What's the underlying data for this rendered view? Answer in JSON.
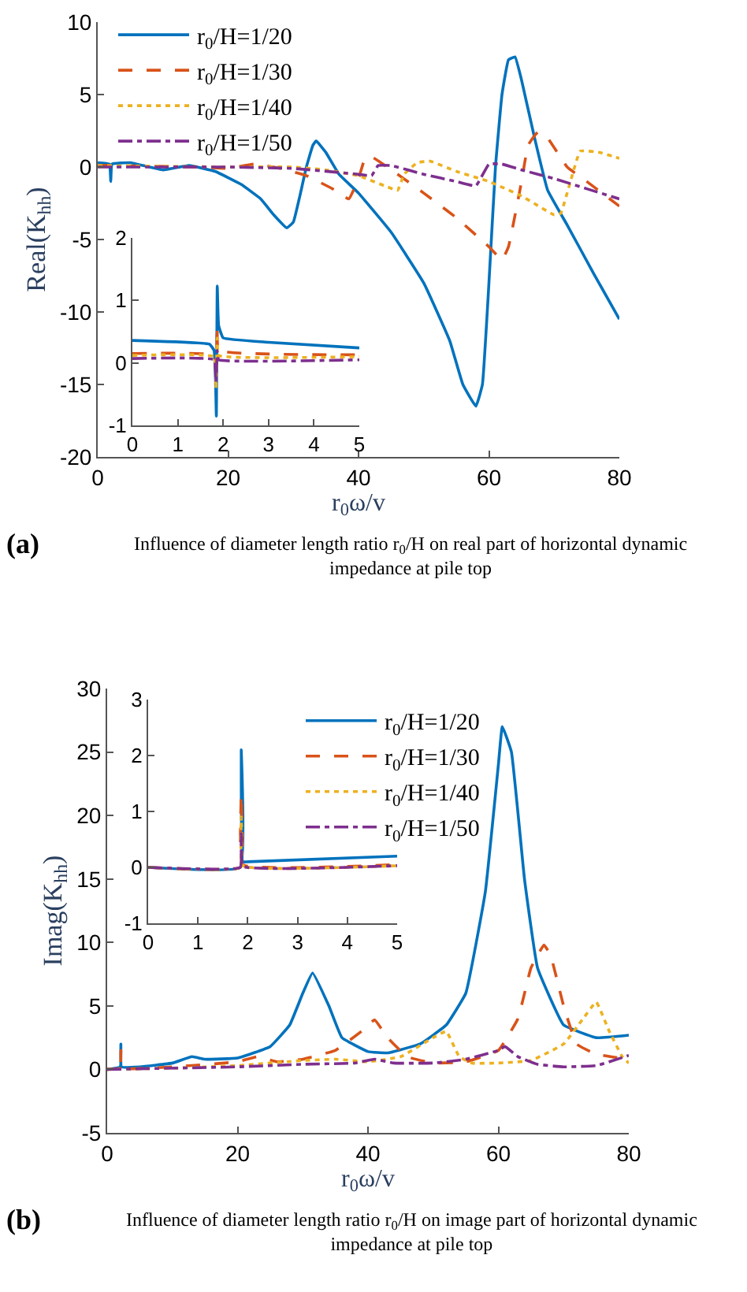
{
  "chart_data": [
    {
      "type": "line",
      "xlabel": "r$_{0}$ω/v",
      "ylabel": "Real(K$_{hh}$)",
      "xlim": [
        0,
        80
      ],
      "ylim": [
        -20,
        10
      ],
      "xticks": [
        0,
        20,
        40,
        60,
        80
      ],
      "yticks": [
        -20,
        -15,
        -10,
        -5,
        0,
        5,
        10
      ],
      "legend": "top left",
      "annotations": [
        "(a)",
        "Influence of diameter length ratio r$_{0}$/H on real part of horizontal dynamic impedance at pile top"
      ],
      "series": [
        {
          "name": "r$_{0}$/H=1/20",
          "color": "#0072bd",
          "line_style": "solid",
          "x": [
            0,
            1.8,
            2,
            2.2,
            5,
            10,
            14,
            18,
            22,
            25,
            27,
            29,
            30,
            31,
            32,
            33,
            33.5,
            35,
            37,
            40,
            45,
            50,
            54,
            56,
            58,
            59,
            60,
            61,
            62,
            63,
            64,
            65,
            67,
            69,
            72,
            76,
            80
          ],
          "values": [
            0.3,
            0.2,
            -1,
            0.2,
            0.3,
            -0.2,
            0.1,
            -0.3,
            -1.2,
            -2.2,
            -3.3,
            -4.2,
            -3.8,
            -2,
            0,
            1.5,
            1.8,
            1,
            -0.5,
            -1.8,
            -4.5,
            -8,
            -12,
            -15,
            -16.5,
            -15,
            -8,
            0,
            5,
            7.4,
            7.6,
            6,
            2,
            -1.6,
            -4,
            -7.3,
            -10.5
          ]
        },
        {
          "name": "r$_{0}$/H=1/30",
          "color": "#d95319",
          "line_style": "dashed",
          "x": [
            0,
            2,
            15,
            20,
            24,
            28,
            32,
            36,
            38.5,
            40,
            41,
            42,
            46,
            50,
            55,
            60,
            62,
            63,
            65,
            66,
            67.5,
            69,
            72,
            75,
            80
          ],
          "values": [
            0.1,
            0.1,
            0,
            -0.1,
            0.2,
            -0.1,
            -0.6,
            -1.5,
            -2.2,
            -0.8,
            0.6,
            0.7,
            -0.5,
            -1.8,
            -3.5,
            -5.5,
            -6.4,
            -5.5,
            -1,
            1.5,
            2.4,
            2,
            0,
            -1,
            -2.7
          ]
        },
        {
          "name": "r$_{0}$/H=1/40",
          "color": "#edb120",
          "line_style": "dotted",
          "x": [
            0,
            20,
            30,
            35,
            40,
            44,
            46,
            47,
            49,
            51,
            55,
            60,
            65,
            70,
            71,
            72.5,
            74,
            77,
            80
          ],
          "values": [
            0.1,
            0,
            0,
            -0.2,
            -0.6,
            -1.3,
            -1.6,
            -0.5,
            0.3,
            0.4,
            -0.3,
            -1,
            -2,
            -3.3,
            -3.2,
            -1,
            1.1,
            1,
            0.6
          ]
        },
        {
          "name": "r$_{0}$/H=1/50",
          "color": "#7e2f8e",
          "line_style": "dashdot",
          "x": [
            0,
            20,
            30,
            40,
            42,
            43,
            45,
            50,
            55,
            58,
            60,
            62,
            65,
            70,
            75,
            80
          ],
          "values": [
            0,
            0,
            -0.1,
            -0.5,
            -0.6,
            0.1,
            0.1,
            -0.5,
            -1,
            -1.3,
            0.2,
            0.2,
            -0.2,
            -0.8,
            -1.5,
            -2.2
          ]
        }
      ]
    },
    {
      "type": "line",
      "xlim": [
        0,
        5
      ],
      "ylim": [
        -1,
        2
      ],
      "xticks": [
        0,
        1,
        2,
        3,
        4,
        5
      ],
      "yticks": [
        -1,
        0,
        1,
        2
      ],
      "series": [
        {
          "color": "#0072bd",
          "line_style": "solid",
          "x": [
            0,
            1.7,
            1.8,
            1.83,
            1.85,
            1.87,
            1.9,
            2,
            3,
            5
          ],
          "values": [
            0.36,
            0.3,
            0.2,
            -0.2,
            -0.85,
            1.23,
            0.6,
            0.4,
            0.33,
            0.24
          ]
        },
        {
          "color": "#d95319",
          "line_style": "dashed",
          "x": [
            0,
            1.8,
            1.84,
            1.87,
            1.9,
            5
          ],
          "values": [
            0.15,
            0.12,
            -0.3,
            0.6,
            0.2,
            0.13
          ]
        },
        {
          "color": "#edb120",
          "line_style": "dotted",
          "x": [
            0,
            1.8,
            1.84,
            1.87,
            1.9,
            5
          ],
          "values": [
            0.12,
            0.1,
            -0.4,
            0.4,
            0.12,
            0.1
          ]
        },
        {
          "color": "#7e2f8e",
          "line_style": "dashdot",
          "x": [
            0,
            1.8,
            1.84,
            1.87,
            1.9,
            5
          ],
          "values": [
            0.07,
            0.05,
            -0.3,
            0.2,
            0.05,
            0.05
          ]
        }
      ]
    },
    {
      "type": "line",
      "xlabel": "r$_{0}$ω/v",
      "ylabel": "Imag(K$_{hh}$)",
      "xlim": [
        0,
        80
      ],
      "ylim": [
        -5,
        30
      ],
      "xticks": [
        0,
        20,
        40,
        60,
        80
      ],
      "yticks": [
        -5,
        0,
        5,
        10,
        15,
        20,
        25,
        30
      ],
      "legend": "top right",
      "annotations": [
        "(b)",
        "Influence of diameter length ratio r$_{0}$/H on image part of horizontal dynamic impedance at pile top"
      ],
      "series": [
        {
          "name": "r$_{0}$/H=1/20",
          "color": "#0072bd",
          "line_style": "solid",
          "x": [
            0,
            2,
            2.1,
            2.2,
            5,
            10,
            13,
            15,
            20,
            25,
            28,
            30,
            31.5,
            34,
            36,
            40,
            43,
            48,
            52,
            55,
            58,
            60,
            60.6,
            62,
            64,
            66,
            70,
            75,
            80
          ],
          "values": [
            0,
            0.2,
            2,
            0.2,
            0.2,
            0.5,
            1,
            0.8,
            0.9,
            1.8,
            3.5,
            6,
            7.6,
            5,
            2.5,
            1.4,
            1.3,
            2,
            3.5,
            6,
            14,
            24,
            27,
            25,
            15,
            8,
            3.5,
            2.5,
            2.7
          ]
        },
        {
          "name": "r$_{0}$/H=1/30",
          "color": "#d95319",
          "line_style": "dashed",
          "x": [
            0,
            2,
            2.1,
            2.2,
            10,
            20,
            23,
            26,
            30,
            35,
            39,
            41,
            43,
            46,
            50,
            55,
            60,
            63,
            65,
            67,
            68,
            70,
            72,
            75,
            80
          ],
          "values": [
            0,
            0.1,
            1.5,
            0.1,
            0.2,
            0.6,
            1,
            0.6,
            0.8,
            1.5,
            3,
            3.9,
            2.5,
            1,
            0.5,
            0.6,
            1.5,
            4,
            8,
            9.8,
            9,
            5,
            2,
            1.2,
            0.8
          ]
        },
        {
          "name": "r$_{0}$/H=1/40",
          "color": "#edb120",
          "line_style": "dotted",
          "x": [
            0,
            10,
            20,
            30,
            35,
            40,
            45,
            50,
            52,
            54,
            56,
            60,
            65,
            70,
            73,
            75,
            77,
            79,
            80
          ],
          "values": [
            0,
            0.1,
            0.3,
            0.7,
            0.8,
            0.6,
            1,
            2.5,
            3,
            1,
            0.5,
            0.5,
            0.7,
            2,
            4,
            5.3,
            3,
            1,
            0.5
          ]
        },
        {
          "name": "r$_{0}$/H=1/50",
          "color": "#7e2f8e",
          "line_style": "dashdot",
          "x": [
            0,
            20,
            30,
            38,
            41,
            44,
            50,
            55,
            60,
            61,
            63,
            66,
            70,
            75,
            80
          ],
          "values": [
            0,
            0.2,
            0.4,
            0.5,
            0.8,
            0.5,
            0.5,
            0.8,
            1.5,
            1.8,
            1,
            0.4,
            0.2,
            0.3,
            1.1
          ]
        }
      ]
    },
    {
      "type": "line",
      "xlim": [
        0,
        5
      ],
      "ylim": [
        -1,
        3
      ],
      "xticks": [
        0,
        1,
        2,
        3,
        4,
        5
      ],
      "yticks": [
        -1,
        0,
        1,
        2,
        3
      ],
      "series": [
        {
          "color": "#0072bd",
          "line_style": "solid",
          "x": [
            0,
            1.85,
            1.87,
            1.9,
            2,
            5
          ],
          "values": [
            0,
            0,
            2.1,
            0.1,
            0.1,
            0.2
          ]
        },
        {
          "color": "#d95319",
          "line_style": "dashed",
          "x": [
            0,
            1.85,
            1.87,
            1.9,
            5
          ],
          "values": [
            0,
            0,
            1.3,
            0.05,
            0.05
          ]
        },
        {
          "color": "#edb120",
          "line_style": "dotted",
          "x": [
            0,
            1.85,
            1.87,
            1.9,
            5
          ],
          "values": [
            0,
            0,
            0.9,
            0.03,
            0.03
          ]
        },
        {
          "color": "#7e2f8e",
          "line_style": "dashdot",
          "x": [
            0,
            1.85,
            1.87,
            1.9,
            5
          ],
          "values": [
            0,
            0,
            0.6,
            0.02,
            0.03
          ]
        }
      ]
    }
  ]
}
